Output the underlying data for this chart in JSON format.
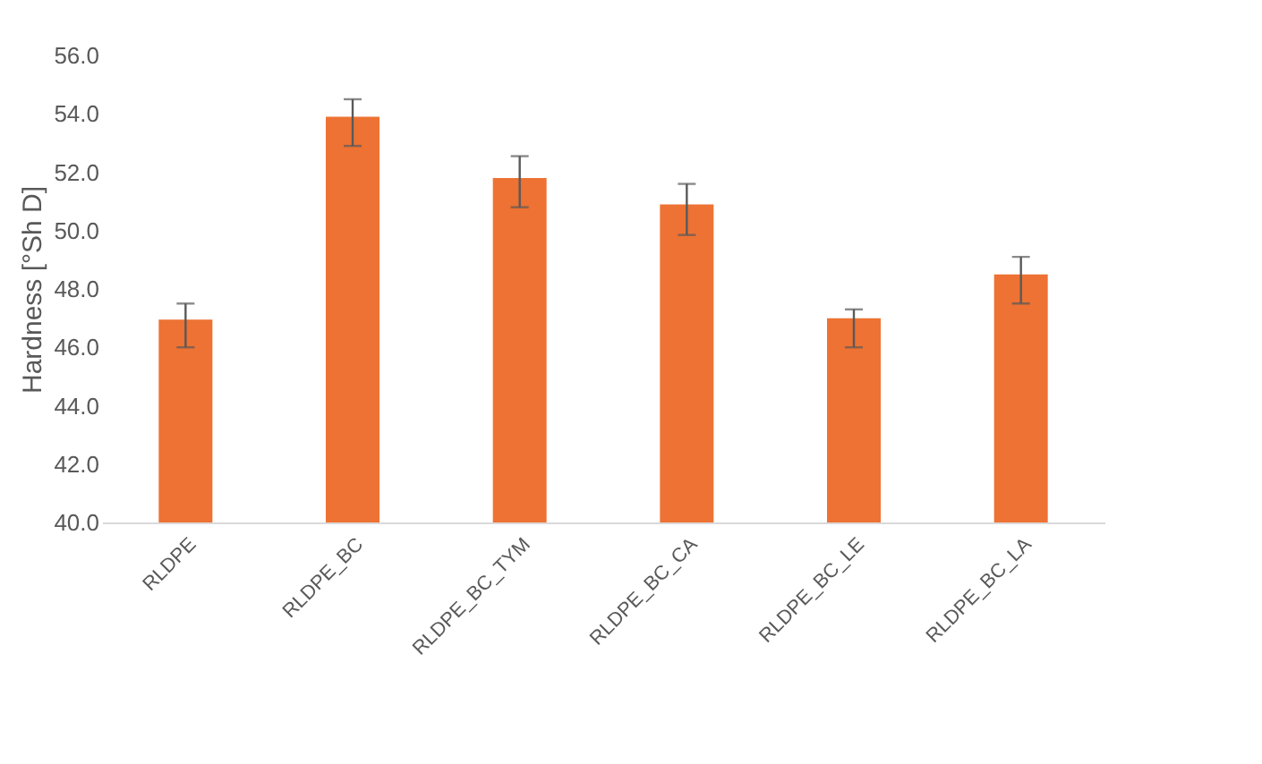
{
  "chart_data": {
    "type": "bar",
    "ylabel": "Hardness [°Sh D]",
    "categories": [
      "RLDPE",
      "RLDPE_BC",
      "RLDPE_BC_TYM",
      "RLDPE_BC_CA",
      "RLDPE_BC_LE",
      "RLDPE_BC_LA"
    ],
    "values": [
      46.95,
      53.9,
      51.8,
      50.9,
      47.0,
      48.5
    ],
    "errors": [
      [
        46.0,
        47.5
      ],
      [
        52.9,
        54.5
      ],
      [
        50.8,
        52.55
      ],
      [
        49.85,
        51.6
      ],
      [
        46.0,
        47.3
      ],
      [
        47.5,
        49.1
      ]
    ],
    "color": "#ed7233",
    "ylim": [
      40,
      56
    ],
    "yticks": [
      {
        "value": 40,
        "label": "40.0"
      },
      {
        "value": 42,
        "label": "42.0"
      },
      {
        "value": 44,
        "label": "44.0"
      },
      {
        "value": 46,
        "label": "46.0"
      },
      {
        "value": 48,
        "label": "48.0"
      },
      {
        "value": 50,
        "label": "50.0"
      },
      {
        "value": 52,
        "label": "52.0"
      },
      {
        "value": 54,
        "label": "54.0"
      },
      {
        "value": 56,
        "label": "56.0"
      }
    ],
    "grid": false
  }
}
